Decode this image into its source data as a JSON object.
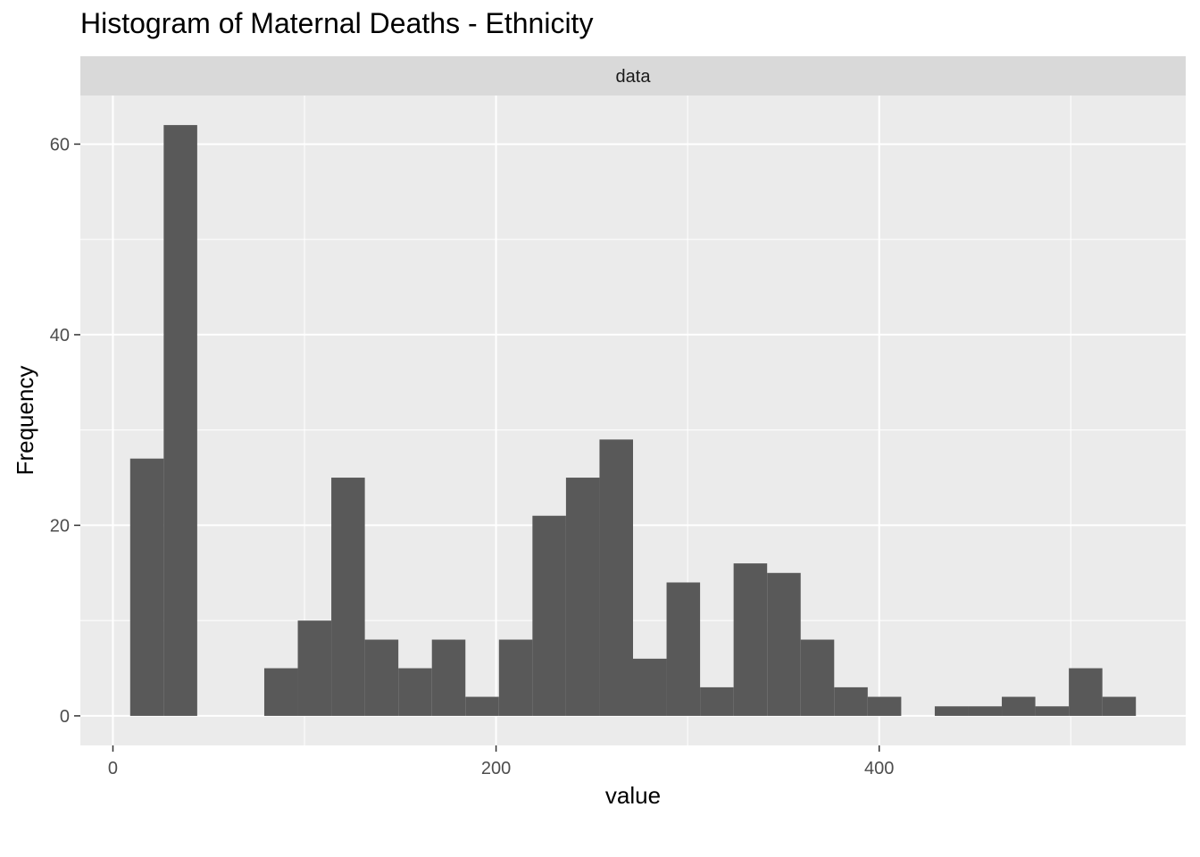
{
  "chart_data": {
    "type": "bar",
    "title": "Histogram of Maternal Deaths - Ethnicity",
    "facet_label": "data",
    "xlabel": "value",
    "ylabel": "Frequency",
    "x_ticks": [
      0,
      200,
      400
    ],
    "y_ticks": [
      0,
      20,
      40,
      60
    ],
    "xlim": [
      -17,
      560
    ],
    "ylim": [
      -3.1,
      65.1
    ],
    "bin_width": 17.5,
    "bins": [
      {
        "start": 9,
        "end": 26.5,
        "count": 27
      },
      {
        "start": 26.5,
        "end": 44,
        "count": 62
      },
      {
        "start": 79,
        "end": 96.5,
        "count": 5
      },
      {
        "start": 96.5,
        "end": 114,
        "count": 10
      },
      {
        "start": 114,
        "end": 131.5,
        "count": 25
      },
      {
        "start": 131.5,
        "end": 149,
        "count": 8
      },
      {
        "start": 149,
        "end": 166.5,
        "count": 5
      },
      {
        "start": 166.5,
        "end": 184,
        "count": 8
      },
      {
        "start": 184,
        "end": 201.5,
        "count": 2
      },
      {
        "start": 201.5,
        "end": 219,
        "count": 8
      },
      {
        "start": 219,
        "end": 236.5,
        "count": 21
      },
      {
        "start": 236.5,
        "end": 254,
        "count": 25
      },
      {
        "start": 254,
        "end": 271.5,
        "count": 29
      },
      {
        "start": 271.5,
        "end": 289,
        "count": 6
      },
      {
        "start": 289,
        "end": 306.5,
        "count": 14
      },
      {
        "start": 306.5,
        "end": 324,
        "count": 3
      },
      {
        "start": 324,
        "end": 341.5,
        "count": 16
      },
      {
        "start": 341.5,
        "end": 359,
        "count": 15
      },
      {
        "start": 359,
        "end": 376.5,
        "count": 8
      },
      {
        "start": 376.5,
        "end": 394,
        "count": 3
      },
      {
        "start": 394,
        "end": 411.5,
        "count": 2
      },
      {
        "start": 429,
        "end": 446.5,
        "count": 1
      },
      {
        "start": 446.5,
        "end": 464,
        "count": 1
      },
      {
        "start": 464,
        "end": 481.5,
        "count": 2
      },
      {
        "start": 481.5,
        "end": 499,
        "count": 1
      },
      {
        "start": 499,
        "end": 516.5,
        "count": 5
      },
      {
        "start": 516.5,
        "end": 534,
        "count": 2
      }
    ],
    "grid": true,
    "legend": "none",
    "colors": {
      "bar": "#595959",
      "panel": "#ebebeb",
      "strip": "#d9d9d9",
      "grid": "#ffffff",
      "axis_text": "#4d4d4d"
    }
  }
}
